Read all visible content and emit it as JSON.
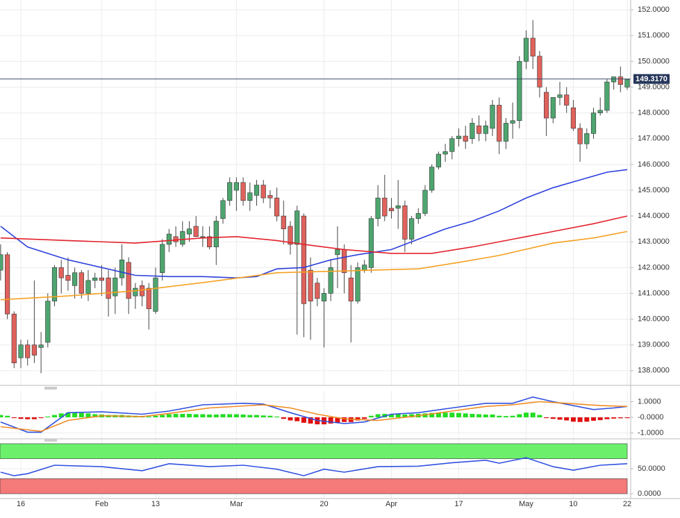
{
  "chart_data": [
    {
      "type": "candlestick",
      "categories": [
        null,
        null,
        null,
        "16",
        null,
        null,
        null,
        null,
        null,
        null,
        null,
        null,
        null,
        null,
        null,
        "Feb",
        null,
        null,
        null,
        null,
        null,
        null,
        null,
        "13",
        null,
        null,
        null,
        null,
        null,
        null,
        null,
        null,
        null,
        null,
        null,
        "Mar",
        null,
        null,
        null,
        null,
        null,
        null,
        null,
        null,
        null,
        null,
        null,
        null,
        "20",
        null,
        null,
        null,
        null,
        null,
        null,
        null,
        null,
        null,
        "Apr",
        null,
        null,
        null,
        null,
        null,
        null,
        null,
        null,
        null,
        "17",
        null,
        null,
        null,
        null,
        null,
        null,
        null,
        null,
        null,
        "May",
        null,
        null,
        null,
        null,
        null,
        null,
        "10",
        null,
        null,
        null,
        null,
        null,
        null,
        null,
        "22"
      ],
      "open": [
        141.9,
        142.5,
        140.2,
        138.5,
        139.0,
        139.0,
        138.9,
        139.1,
        140.7,
        142.0,
        141.7,
        141.3,
        141.8,
        141.0,
        141.5,
        141.6,
        141.6,
        140.9,
        141.6,
        142.2,
        140.9,
        141.3,
        141.2,
        140.3,
        141.8,
        142.9,
        143.2,
        142.9,
        143.3,
        143.6,
        143.2,
        143.2,
        142.8,
        143.9,
        144.6,
        145.0,
        145.3,
        144.6,
        144.8,
        145.2,
        144.8,
        144.7,
        144.0,
        143.6,
        142.9,
        144.0,
        141.9,
        141.4,
        140.7,
        141.0,
        142.5,
        142.7,
        141.6,
        140.7,
        141.9,
        142.0,
        143.9,
        144.7,
        144.3,
        144.3,
        144.4,
        143.1,
        143.9,
        144.1,
        145.0,
        145.9,
        146.4,
        146.5,
        147.0,
        147.1,
        147.0,
        147.5,
        147.2,
        147.4,
        148.3,
        146.9,
        147.6,
        147.7,
        150.0,
        150.9,
        150.2,
        148.8,
        147.8,
        148.6,
        148.7,
        148.2,
        147.4,
        146.8,
        147.2,
        148.0,
        148.1,
        149.2,
        149.4,
        149.0
      ],
      "high": [
        142.9,
        142.6,
        140.3,
        139.2,
        139.2,
        141.5,
        139.5,
        141.0,
        142.1,
        142.3,
        142.4,
        142.0,
        141.9,
        141.9,
        141.8,
        142.1,
        141.9,
        142.0,
        142.9,
        142.4,
        141.4,
        141.5,
        141.4,
        142.0,
        143.1,
        143.5,
        143.6,
        143.8,
        143.8,
        144.0,
        143.6,
        143.6,
        144.0,
        144.7,
        145.5,
        145.5,
        145.5,
        145.3,
        145.4,
        145.4,
        145.0,
        145.1,
        144.6,
        143.8,
        144.4,
        144.1,
        142.4,
        141.6,
        141.2,
        142.3,
        143.6,
        142.9,
        142.1,
        142.2,
        142.3,
        144.0,
        145.2,
        145.6,
        144.7,
        145.4,
        144.6,
        144.0,
        144.3,
        145.2,
        146.0,
        146.5,
        146.8,
        147.1,
        147.4,
        147.5,
        147.8,
        147.9,
        147.7,
        148.5,
        148.6,
        147.8,
        148.4,
        150.2,
        151.2,
        151.6,
        150.4,
        149.0,
        148.6,
        149.2,
        149.0,
        148.5,
        147.6,
        147.4,
        148.2,
        148.6,
        149.3,
        149.4,
        149.8,
        149.3
      ],
      "low": [
        141.5,
        140.0,
        138.1,
        138.1,
        138.2,
        138.3,
        137.9,
        138.9,
        140.5,
        141.0,
        141.1,
        140.8,
        140.8,
        140.7,
        141.2,
        140.9,
        140.1,
        140.2,
        141.3,
        140.2,
        140.4,
        140.5,
        139.6,
        140.2,
        141.5,
        142.6,
        142.8,
        142.8,
        143.0,
        143.2,
        142.8,
        142.7,
        142.1,
        143.7,
        144.4,
        144.2,
        144.4,
        144.2,
        144.4,
        144.5,
        144.3,
        143.8,
        142.9,
        142.5,
        139.4,
        139.3,
        139.2,
        140.5,
        138.9,
        140.7,
        141.2,
        141.0,
        139.1,
        140.6,
        141.8,
        141.8,
        143.6,
        143.8,
        143.9,
        143.5,
        142.6,
        142.9,
        143.7,
        144.0,
        144.9,
        145.8,
        146.1,
        146.2,
        146.7,
        146.6,
        146.8,
        146.9,
        146.9,
        147.1,
        146.4,
        146.6,
        147.0,
        147.4,
        149.7,
        149.7,
        148.6,
        147.1,
        147.6,
        148.3,
        148.0,
        147.3,
        146.1,
        146.6,
        147.0,
        147.9,
        148.0,
        148.9,
        148.8,
        148.9
      ],
      "close": [
        142.5,
        140.2,
        138.3,
        139.0,
        138.5,
        138.6,
        139.0,
        140.7,
        142.0,
        141.6,
        141.5,
        141.8,
        141.0,
        141.5,
        141.6,
        141.5,
        140.8,
        141.6,
        142.3,
        140.8,
        141.2,
        140.9,
        140.4,
        141.6,
        142.9,
        143.3,
        143.0,
        143.4,
        143.5,
        143.2,
        143.2,
        142.8,
        143.8,
        144.6,
        145.3,
        145.3,
        144.6,
        144.9,
        145.2,
        144.7,
        144.7,
        144.0,
        143.5,
        142.9,
        144.2,
        140.6,
        140.7,
        140.8,
        141.0,
        142.0,
        142.7,
        141.8,
        140.7,
        142.0,
        142.1,
        143.9,
        144.7,
        144.0,
        144.2,
        144.4,
        143.1,
        143.9,
        144.1,
        145.0,
        145.9,
        146.4,
        146.5,
        147.0,
        147.1,
        146.9,
        147.6,
        147.2,
        147.5,
        148.3,
        146.9,
        147.6,
        147.7,
        150.0,
        150.9,
        150.2,
        149.0,
        147.8,
        148.6,
        148.7,
        148.3,
        147.4,
        146.8,
        147.2,
        148.0,
        148.1,
        149.2,
        149.4,
        149.1,
        149.3
      ],
      "up_color": "#4ea56f",
      "down_color": "#e0625c",
      "ylim": [
        137.43,
        152.38
      ],
      "yticks": [
        {
          "value": 138,
          "label": "138.0000"
        },
        {
          "value": 139,
          "label": "139.0000"
        },
        {
          "value": 140,
          "label": "140.0000"
        },
        {
          "value": 141,
          "label": "141.0000"
        },
        {
          "value": 142,
          "label": "142.0000"
        },
        {
          "value": 143,
          "label": "143.0000"
        },
        {
          "value": 144,
          "label": "144.0000"
        },
        {
          "value": 145,
          "label": "145.0000"
        },
        {
          "value": 146,
          "label": "146.0000"
        },
        {
          "value": 147,
          "label": "147.0000"
        },
        {
          "value": 148,
          "label": "148.0000"
        },
        {
          "value": 149,
          "label": "149.0000"
        },
        {
          "value": 150,
          "label": "150.0000"
        },
        {
          "value": 151,
          "label": "151.0000"
        },
        {
          "value": 152,
          "label": "152.0000"
        }
      ],
      "grid": true,
      "last_price": {
        "value": 149.317,
        "label": "149.3170"
      },
      "overlays": [
        {
          "color": "#2b3fdc",
          "x": [
            0,
            4,
            10,
            15,
            20,
            25,
            30,
            35,
            38,
            41,
            45,
            49,
            53,
            58,
            62,
            66,
            70,
            74,
            78,
            82,
            86,
            90,
            93
          ],
          "values": [
            143.6,
            142.8,
            142.3,
            142.0,
            141.7,
            141.65,
            141.65,
            141.6,
            141.65,
            141.95,
            142.0,
            142.3,
            142.5,
            142.7,
            143.1,
            143.5,
            143.8,
            144.2,
            144.7,
            145.1,
            145.4,
            145.7,
            145.8
          ]
        },
        {
          "color": "#e4202a",
          "x": [
            0,
            10,
            20,
            30,
            35,
            41,
            45,
            51,
            58,
            64,
            70,
            76,
            82,
            88,
            93
          ],
          "values": [
            143.15,
            143.05,
            142.95,
            143.15,
            143.2,
            143.05,
            142.9,
            142.7,
            142.55,
            142.55,
            142.8,
            143.1,
            143.4,
            143.7,
            144.0
          ]
        },
        {
          "color": "#f5a020",
          "x": [
            0,
            10,
            20,
            31,
            41,
            51,
            62,
            68,
            74,
            82,
            88,
            93
          ],
          "values": [
            140.75,
            140.9,
            141.1,
            141.45,
            141.8,
            141.87,
            141.95,
            142.2,
            142.47,
            142.95,
            143.15,
            143.4
          ]
        }
      ]
    },
    {
      "type": "macd",
      "histogram": [
        0.15,
        0.1,
        -0.05,
        -0.1,
        -0.12,
        -0.12,
        -0.05,
        0.05,
        0.15,
        0.25,
        0.3,
        0.3,
        0.28,
        0.25,
        0.2,
        0.18,
        0.15,
        0.15,
        0.15,
        0.12,
        0.1,
        0.08,
        0.05,
        0.1,
        0.15,
        0.2,
        0.22,
        0.22,
        0.22,
        0.2,
        0.2,
        0.18,
        0.18,
        0.2,
        0.2,
        0.2,
        0.18,
        0.15,
        0.15,
        0.12,
        0.1,
        0.05,
        -0.1,
        -0.2,
        -0.25,
        -0.35,
        -0.4,
        -0.45,
        -0.45,
        -0.4,
        -0.35,
        -0.3,
        -0.3,
        -0.2,
        -0.1,
        0.1,
        0.2,
        0.22,
        0.2,
        0.2,
        0.18,
        0.2,
        0.22,
        0.25,
        0.28,
        0.3,
        0.3,
        0.3,
        0.28,
        0.25,
        0.22,
        0.2,
        0.18,
        0.18,
        0.1,
        0.08,
        0.1,
        0.2,
        0.3,
        0.3,
        0.15,
        -0.05,
        -0.1,
        -0.15,
        -0.2,
        -0.28,
        -0.3,
        -0.28,
        -0.22,
        -0.18,
        -0.12,
        -0.08,
        -0.06,
        -0.05
      ],
      "up_color": "#22dd22",
      "down_color": "#e01010",
      "ylim": [
        -1.29,
        1.69
      ],
      "yticks": [
        {
          "value": 1,
          "label": "1.0000"
        },
        {
          "value": 0,
          "label": "-0.0000"
        },
        {
          "value": -1,
          "label": "-1.0000"
        }
      ],
      "lines": [
        {
          "color": "#3050e0",
          "x": [
            0,
            4,
            6,
            10,
            15,
            21,
            25,
            30,
            36,
            39,
            43,
            47,
            51,
            54,
            58,
            62,
            67,
            72,
            76,
            79,
            82,
            88,
            91,
            93
          ],
          "values": [
            -0.3,
            -0.95,
            -0.95,
            0.3,
            0.35,
            0.2,
            0.4,
            0.8,
            0.9,
            0.85,
            0.3,
            -0.2,
            -0.4,
            -0.3,
            0.2,
            0.3,
            0.6,
            0.9,
            0.9,
            1.3,
            1.0,
            0.5,
            0.6,
            0.7
          ]
        },
        {
          "color": "#f08a20",
          "x": [
            0,
            4,
            6,
            10,
            15,
            21,
            25,
            31,
            39,
            43,
            47,
            51,
            56,
            62,
            67,
            72,
            76,
            80,
            84,
            89,
            93
          ],
          "values": [
            -0.6,
            -0.8,
            -0.9,
            -0.2,
            0.1,
            0.05,
            0.25,
            0.6,
            0.8,
            0.6,
            0.2,
            -0.1,
            -0.2,
            0.1,
            0.4,
            0.7,
            0.8,
            1.0,
            0.9,
            0.75,
            0.7
          ]
        }
      ]
    },
    {
      "type": "rsi",
      "ylim": [
        -9.7,
        109.7
      ],
      "yticks": [
        {
          "value": 50,
          "label": "50.0000"
        },
        {
          "value": 0,
          "label": "0.0000"
        }
      ],
      "bands": [
        {
          "range": [
            70,
            100
          ],
          "color": "#6cf06c"
        },
        {
          "range": [
            0,
            30
          ],
          "color": "#f47a7a"
        }
      ],
      "line": {
        "color": "#3050e0",
        "x": [
          0,
          2,
          4,
          8,
          15,
          21,
          25,
          31,
          36,
          41,
          45,
          48,
          51,
          56,
          62,
          67,
          72,
          74,
          78,
          82,
          85,
          89,
          93
        ],
        "values": [
          43,
          36,
          40,
          57,
          54,
          46,
          60,
          54,
          57,
          49,
          36,
          49,
          43,
          54,
          55,
          62,
          67,
          61,
          72,
          54,
          47,
          57,
          60
        ]
      }
    }
  ]
}
